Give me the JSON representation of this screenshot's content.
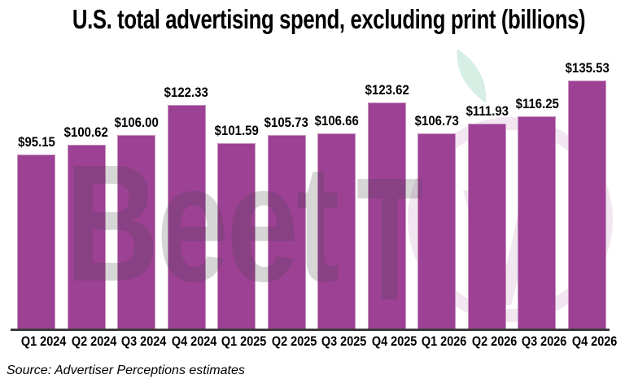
{
  "title": "U.S. total advertising spend, excluding print (billions)",
  "source": "Source: Advertiser Perceptions estimates",
  "watermark": {
    "brand_gray": "Beet",
    "brand_t": "T",
    "brand_v": "V"
  },
  "colors": {
    "bar": "#9C4194",
    "bar_edge": "#C895BF",
    "axis": "#3C3C3C",
    "label": "#000000",
    "background": "#FFFFFF",
    "watermark_gray": "rgba(70,70,70,0.22)",
    "watermark_pink": "rgba(156,65,148,0.13)",
    "watermark_leaf": "rgba(82,186,137,0.24)"
  },
  "chart_data": {
    "type": "bar",
    "title": "U.S. total advertising spend, excluding print (billions)",
    "categories": [
      "Q1 2024",
      "Q2 2024",
      "Q3 2024",
      "Q4 2024",
      "Q1 2025",
      "Q2 2025",
      "Q3 2025",
      "Q4 2025",
      "Q1 2026",
      "Q2 2026",
      "Q3 2026",
      "Q4 2026"
    ],
    "values": [
      95.15,
      100.62,
      106.0,
      122.33,
      101.59,
      105.73,
      106.66,
      123.62,
      106.73,
      111.93,
      116.25,
      135.53
    ],
    "value_prefix": "$",
    "value_decimals": 2,
    "xlabel": "",
    "ylabel": "",
    "ylim": [
      0,
      140
    ],
    "grid": false,
    "legend": "none",
    "data_labels": true,
    "source": "Source: Advertiser Perceptions estimates"
  }
}
